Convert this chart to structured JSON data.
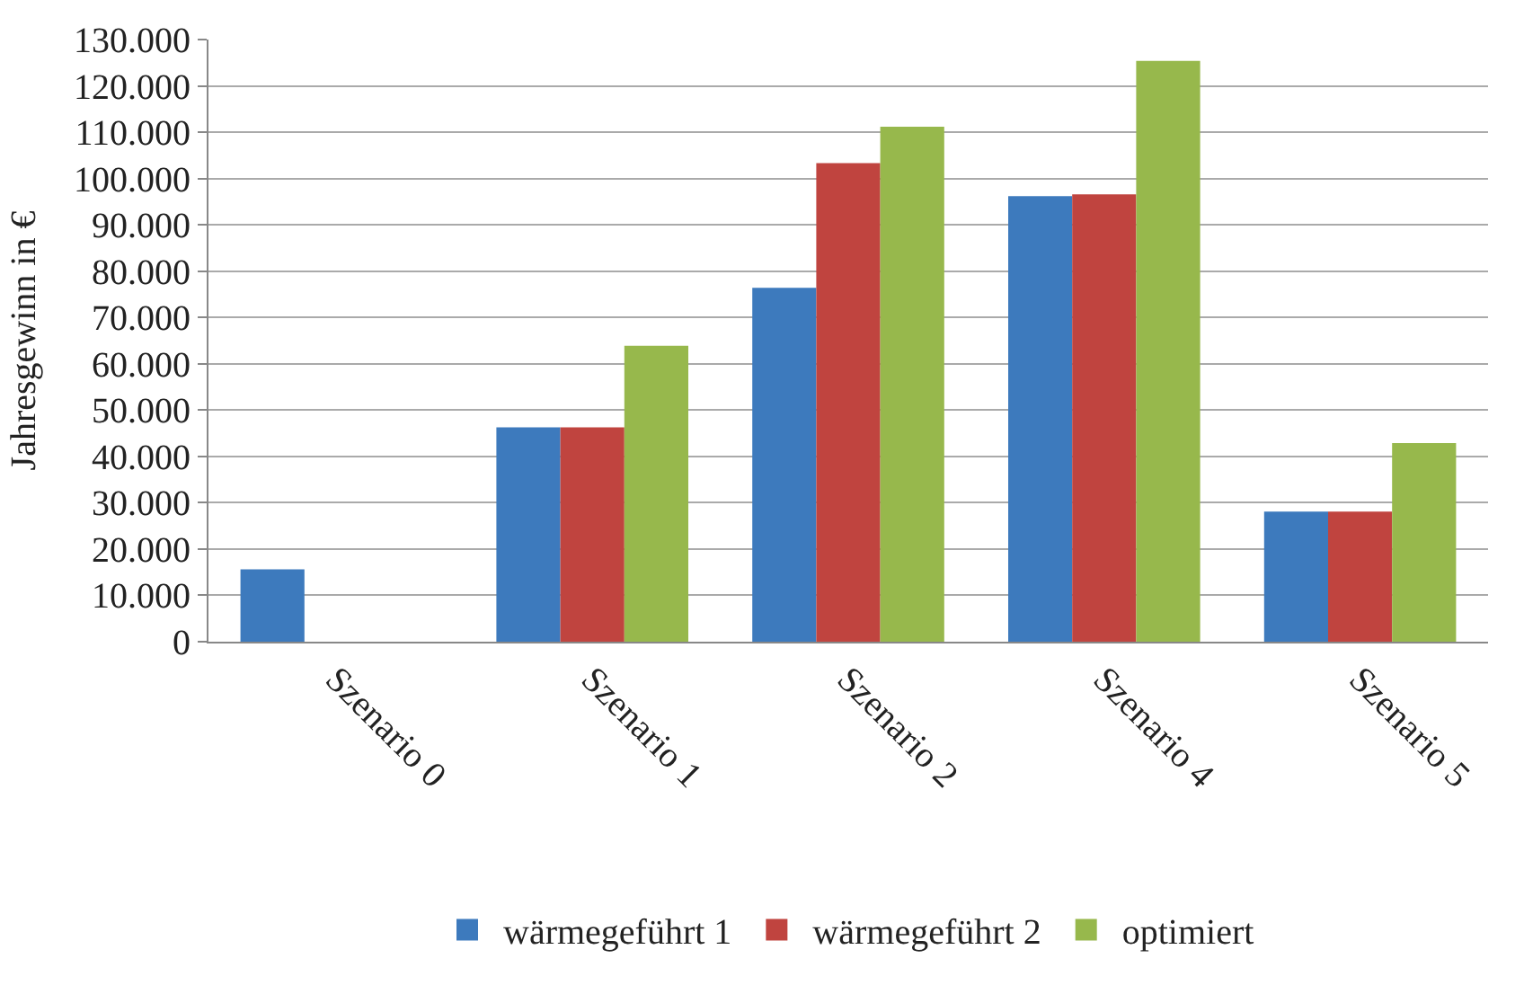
{
  "chart_data": {
    "type": "bar",
    "ylabel": "Jahresgewinn in €",
    "categories": [
      "Szenario 0",
      "Szenario 1",
      "Szenario 2",
      "Szenario 4",
      "Szenario 5"
    ],
    "series": [
      {
        "name": "wärmegeführt 1",
        "color": "#3d7abd",
        "values": [
          15600,
          46300,
          76400,
          96200,
          28100
        ]
      },
      {
        "name": "wärmegeführt 2",
        "color": "#c0443f",
        "values": [
          null,
          46300,
          103300,
          96600,
          28100
        ]
      },
      {
        "name": "optimiert",
        "color": "#97b84c",
        "values": [
          null,
          63900,
          111200,
          125400,
          42900
        ]
      }
    ],
    "ylim": [
      0,
      130000
    ],
    "yticks": [
      {
        "value": 0,
        "label": "0"
      },
      {
        "value": 10000,
        "label": "10.000"
      },
      {
        "value": 20000,
        "label": "20.000"
      },
      {
        "value": 30000,
        "label": "30.000"
      },
      {
        "value": 40000,
        "label": "40.000"
      },
      {
        "value": 50000,
        "label": "50.000"
      },
      {
        "value": 60000,
        "label": "60.000"
      },
      {
        "value": 70000,
        "label": "70.000"
      },
      {
        "value": 80000,
        "label": "80.000"
      },
      {
        "value": 90000,
        "label": "90.000"
      },
      {
        "value": 100000,
        "label": "100.000"
      },
      {
        "value": 110000,
        "label": "110.000"
      },
      {
        "value": 120000,
        "label": "120.000"
      },
      {
        "value": 130000,
        "label": "130.000"
      }
    ],
    "grid": "y",
    "legend": "bottom"
  }
}
